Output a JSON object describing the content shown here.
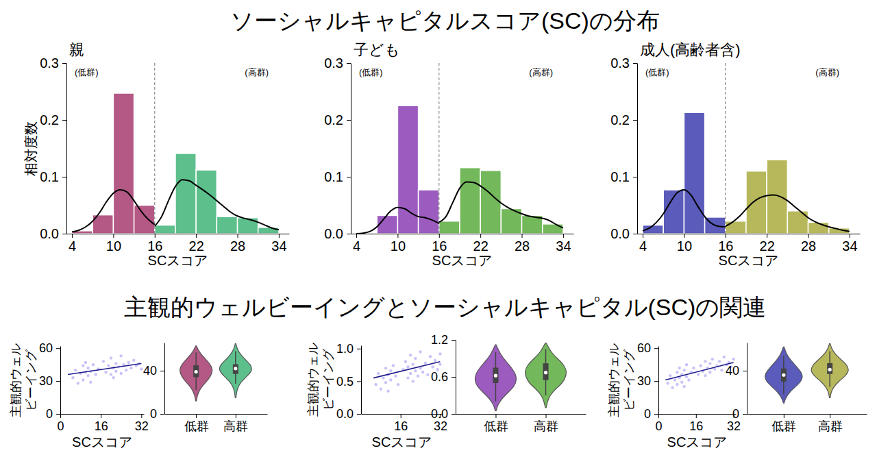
{
  "titles": [
    "ソーシャルキャピタルスコア(SC)の分布",
    "主観的ウェルビーイングとソーシャルキャピタル(SC)の関連"
  ],
  "chart_data": [
    {
      "type": "histogram",
      "title": "親",
      "x_label": "SCスコア",
      "y_label": "相対度数",
      "annotations": [
        "(低群)",
        "(高群)"
      ],
      "bins": [
        4,
        7,
        10,
        13,
        16,
        19,
        22,
        25,
        28,
        31,
        34
      ],
      "values": [
        0.005,
        0.033,
        0.247,
        0.05,
        0.015,
        0.141,
        0.112,
        0.03,
        0.028,
        0.011
      ],
      "colors": [
        "#b45985",
        "#b45985",
        "#b45985",
        "#b45985",
        "#5dbf8c",
        "#5dbf8c",
        "#5dbf8c",
        "#5dbf8c",
        "#5dbf8c",
        "#5dbf8c"
      ],
      "threshold": 16,
      "curves": [
        {
          "x": [
            4,
            5,
            6,
            7,
            8,
            9,
            10,
            11,
            12,
            13,
            14,
            15,
            16
          ],
          "values": [
            0.003,
            0.006,
            0.012,
            0.022,
            0.037,
            0.056,
            0.071,
            0.077,
            0.073,
            0.058,
            0.04,
            0.026,
            0.016
          ]
        },
        {
          "x": [
            16,
            17,
            18,
            19,
            20,
            21,
            22,
            23,
            24,
            25,
            26,
            27,
            28,
            29,
            30,
            31,
            32,
            33,
            34
          ],
          "values": [
            0.013,
            0.03,
            0.058,
            0.083,
            0.095,
            0.093,
            0.085,
            0.077,
            0.068,
            0.058,
            0.048,
            0.038,
            0.031,
            0.027,
            0.024,
            0.02,
            0.015,
            0.01,
            0.007
          ]
        }
      ],
      "xlim": [
        3.2,
        35.5
      ],
      "xticks": [
        4,
        10,
        16,
        22,
        28,
        34
      ],
      "ylim": [
        0,
        0.3
      ],
      "yticks": [
        {
          "value": 0,
          "label": "0.0"
        },
        0.1,
        0.2,
        0.3
      ]
    },
    {
      "type": "histogram",
      "title": "子ども",
      "x_label": "SCスコア",
      "annotations": [
        "(低群)",
        "(高群)"
      ],
      "bins": [
        4,
        7,
        10,
        13,
        16,
        19,
        22,
        25,
        28,
        31,
        34
      ],
      "values": [
        0,
        0.032,
        0.225,
        0.077,
        0.022,
        0.116,
        0.111,
        0.044,
        0.032,
        0.017
      ],
      "colors": [
        "#9c5bbf",
        "#9c5bbf",
        "#9c5bbf",
        "#9c5bbf",
        "#73b85b",
        "#73b85b",
        "#73b85b",
        "#73b85b",
        "#73b85b",
        "#73b85b"
      ],
      "threshold": 16,
      "curves": [
        {
          "x": [
            4,
            5,
            6,
            7,
            8,
            9,
            10,
            11,
            12,
            13,
            14,
            15,
            16
          ],
          "values": [
            0.0,
            0.001,
            0.004,
            0.012,
            0.026,
            0.04,
            0.046,
            0.044,
            0.036,
            0.03,
            0.028,
            0.024,
            0.018
          ]
        },
        {
          "x": [
            16,
            17,
            18,
            19,
            20,
            21,
            22,
            23,
            24,
            25,
            26,
            27,
            28,
            29,
            30,
            31,
            32,
            33,
            34
          ],
          "values": [
            0.02,
            0.03,
            0.055,
            0.08,
            0.091,
            0.09,
            0.084,
            0.075,
            0.064,
            0.054,
            0.046,
            0.04,
            0.035,
            0.031,
            0.029,
            0.027,
            0.023,
            0.016,
            0.01
          ]
        }
      ],
      "xlim": [
        3.2,
        35.5
      ],
      "xticks": [
        4,
        10,
        16,
        22,
        28,
        34
      ],
      "ylim": [
        0,
        0.3
      ],
      "yticks": [
        {
          "value": 0,
          "label": "0.0"
        },
        0.1,
        0.2,
        0.3
      ]
    },
    {
      "type": "histogram",
      "title": "成人(高齢者含)",
      "x_label": "SCスコア",
      "annotations": [
        "(低群)",
        "(高群)"
      ],
      "bins": [
        4,
        7,
        10,
        13,
        16,
        19,
        22,
        25,
        28,
        31,
        34
      ],
      "values": [
        0.015,
        0.077,
        0.213,
        0.029,
        0.022,
        0.11,
        0.13,
        0.04,
        0.02,
        0.01
      ],
      "colors": [
        "#5a5bba",
        "#5a5bba",
        "#5a5bba",
        "#5a5bba",
        "#b7b85b",
        "#b7b85b",
        "#b7b85b",
        "#b7b85b",
        "#b7b85b",
        "#b7b85b"
      ],
      "threshold": 16,
      "curves": [
        {
          "x": [
            4,
            5,
            6,
            7,
            8,
            9,
            10,
            11,
            12,
            13,
            14,
            15,
            16
          ],
          "values": [
            0.005,
            0.01,
            0.02,
            0.035,
            0.055,
            0.072,
            0.077,
            0.068,
            0.048,
            0.03,
            0.018,
            0.013,
            0.012
          ]
        },
        {
          "x": [
            16,
            17,
            18,
            19,
            20,
            21,
            22,
            23,
            24,
            25,
            26,
            27,
            28,
            29,
            30,
            31,
            32,
            33,
            34
          ],
          "values": [
            0.013,
            0.02,
            0.03,
            0.043,
            0.055,
            0.063,
            0.067,
            0.068,
            0.065,
            0.058,
            0.048,
            0.038,
            0.028,
            0.021,
            0.016,
            0.012,
            0.009,
            0.006,
            0.004
          ]
        }
      ],
      "xlim": [
        3.2,
        35.5
      ],
      "xticks": [
        4,
        10,
        16,
        22,
        28,
        34
      ],
      "ylim": [
        0,
        0.3
      ],
      "yticks": [
        {
          "value": 0,
          "label": "0.0"
        },
        0.1,
        0.2,
        0.3
      ]
    },
    {
      "type": "scatter",
      "x_label": "SCスコア",
      "y_label": "主観的ウェルビーイング",
      "color": "#7b68ee",
      "x": [
        5,
        6,
        7,
        8,
        9,
        9,
        10,
        10,
        11,
        11,
        12,
        12,
        13,
        14,
        15,
        17,
        18,
        19,
        20,
        20,
        21,
        21,
        22,
        22,
        23,
        24,
        24,
        25,
        26,
        27,
        28,
        29,
        30,
        31,
        32
      ],
      "values": [
        33,
        40,
        28,
        37,
        44,
        31,
        38,
        47,
        35,
        42,
        29,
        39,
        45,
        36,
        41,
        48,
        38,
        44,
        36,
        51,
        42,
        33,
        46,
        39,
        43,
        37,
        53,
        45,
        40,
        47,
        42,
        49,
        44,
        46,
        41
      ],
      "trend": {
        "x": [
          3,
          32
        ],
        "values": [
          36,
          46
        ],
        "color": "#1c1c8a"
      },
      "xlim": [
        0,
        33
      ],
      "xticks": [
        0,
        16,
        32
      ],
      "ylim": [
        0,
        62
      ],
      "yticks": [
        0,
        30,
        60
      ]
    },
    {
      "type": "violin",
      "categories": [
        "低群",
        "高群"
      ],
      "colors": [
        "#b45985",
        "#5dbf8c"
      ],
      "violins": [
        {
          "y": [
            12,
            17,
            22,
            27,
            32,
            37,
            42,
            47,
            52,
            57,
            63
          ],
          "density": [
            0.02,
            0.08,
            0.2,
            0.45,
            0.75,
            0.95,
            1.0,
            0.8,
            0.5,
            0.2,
            0.02
          ],
          "q1": 34,
          "median": 39,
          "q3": 45,
          "whisker_low": 22,
          "whisker_high": 57
        },
        {
          "y": [
            15,
            20,
            25,
            30,
            35,
            40,
            45,
            50,
            55,
            60,
            65
          ],
          "density": [
            0.02,
            0.06,
            0.15,
            0.35,
            0.7,
            1.0,
            0.95,
            0.6,
            0.3,
            0.1,
            0.02
          ],
          "q1": 37,
          "median": 42,
          "q3": 46,
          "whisker_low": 28,
          "whisker_high": 58
        }
      ],
      "ylim": [
        0,
        66
      ],
      "yticks": [
        0,
        40
      ]
    },
    {
      "type": "scatter",
      "x_label": "SCスコア",
      "y_label": "主観的ウェルビーイング",
      "color": "#7b68ee",
      "x": [
        6,
        7,
        8,
        9,
        10,
        10,
        11,
        11,
        12,
        12,
        13,
        14,
        15,
        17,
        18,
        19,
        19,
        20,
        20,
        21,
        21,
        22,
        22,
        23,
        24,
        24,
        25,
        26,
        27,
        28,
        29,
        30,
        31,
        32,
        32
      ],
      "values": [
        0.45,
        0.62,
        0.38,
        0.55,
        0.7,
        0.48,
        0.6,
        0.35,
        0.66,
        0.52,
        0.74,
        0.58,
        0.45,
        0.68,
        0.8,
        0.55,
        0.72,
        0.62,
        0.9,
        0.5,
        0.76,
        0.66,
        0.85,
        0.58,
        0.7,
        0.95,
        0.64,
        0.78,
        0.6,
        0.88,
        0.72,
        0.82,
        0.68,
        0.92,
        0.76
      ],
      "trend": {
        "x": [
          5,
          32
        ],
        "values": [
          0.55,
          0.8
        ],
        "color": "#1c1c8a"
      },
      "xlim": [
        0,
        33
      ],
      "xticks": [
        16,
        32
      ],
      "ylim": [
        0,
        1.05
      ],
      "yticks": [
        {
          "value": 0,
          "label": "0.0"
        },
        0.5,
        {
          "value": 1,
          "label": "1.0"
        }
      ]
    },
    {
      "type": "violin",
      "categories": [
        "低群",
        "高群"
      ],
      "colors": [
        "#9c5bbf",
        "#73b85b"
      ],
      "violins": [
        {
          "y": [
            0.05,
            0.15,
            0.25,
            0.35,
            0.45,
            0.55,
            0.65,
            0.75,
            0.85,
            0.95,
            1.12
          ],
          "density": [
            0.02,
            0.1,
            0.3,
            0.6,
            0.9,
            1.0,
            0.95,
            0.75,
            0.5,
            0.25,
            0.02
          ],
          "q1": 0.5,
          "median": 0.62,
          "q3": 0.75,
          "whisker_low": 0.2,
          "whisker_high": 1.0
        },
        {
          "y": [
            0.1,
            0.2,
            0.3,
            0.4,
            0.5,
            0.6,
            0.7,
            0.8,
            0.9,
            1.0,
            1.15
          ],
          "density": [
            0.02,
            0.08,
            0.2,
            0.45,
            0.8,
            0.95,
            1.0,
            0.85,
            0.55,
            0.25,
            0.02
          ],
          "q1": 0.55,
          "median": 0.67,
          "q3": 0.82,
          "whisker_low": 0.3,
          "whisker_high": 1.05
        }
      ],
      "ylim": [
        0,
        1.2
      ],
      "yticks": [
        {
          "value": 0,
          "label": "0.0"
        },
        0.6,
        1.2
      ]
    },
    {
      "type": "scatter",
      "x_label": "SCスコア",
      "y_label": "主観的ウェルビーイング",
      "color": "#7b68ee",
      "x": [
        4,
        5,
        6,
        7,
        8,
        8,
        9,
        9,
        10,
        10,
        11,
        11,
        12,
        12,
        13,
        14,
        15,
        17,
        18,
        19,
        20,
        20,
        21,
        22,
        22,
        23,
        24,
        25,
        26,
        27,
        28,
        29,
        30,
        31,
        32
      ],
      "values": [
        28,
        35,
        24,
        31,
        38,
        27,
        33,
        42,
        29,
        36,
        40,
        25,
        34,
        45,
        31,
        38,
        42,
        36,
        44,
        39,
        48,
        35,
        42,
        46,
        38,
        50,
        41,
        44,
        48,
        40,
        52,
        45,
        47,
        43,
        50
      ],
      "trend": {
        "x": [
          3,
          32
        ],
        "values": [
          31,
          47
        ],
        "color": "#1c1c8a"
      },
      "xlim": [
        0,
        33
      ],
      "xticks": [
        0,
        16,
        32
      ],
      "ylim": [
        0,
        62
      ],
      "yticks": [
        0,
        30,
        60
      ]
    },
    {
      "type": "violin",
      "categories": [
        "低群",
        "高群"
      ],
      "colors": [
        "#5a5bba",
        "#b7b85b"
      ],
      "violins": [
        {
          "y": [
            10,
            15,
            20,
            25,
            30,
            35,
            40,
            45,
            50,
            55,
            62
          ],
          "density": [
            0.02,
            0.1,
            0.3,
            0.6,
            0.9,
            1.0,
            0.85,
            0.6,
            0.35,
            0.15,
            0.02
          ],
          "q1": 30,
          "median": 36,
          "q3": 42,
          "whisker_low": 18,
          "whisker_high": 54
        },
        {
          "y": [
            15,
            20,
            25,
            30,
            35,
            40,
            45,
            50,
            55,
            60,
            65
          ],
          "density": [
            0.02,
            0.06,
            0.2,
            0.45,
            0.8,
            1.0,
            0.9,
            0.6,
            0.3,
            0.1,
            0.02
          ],
          "q1": 37,
          "median": 41,
          "q3": 47,
          "whisker_low": 25,
          "whisker_high": 58
        }
      ],
      "ylim": [
        0,
        66
      ],
      "yticks": [
        0,
        40
      ]
    }
  ]
}
